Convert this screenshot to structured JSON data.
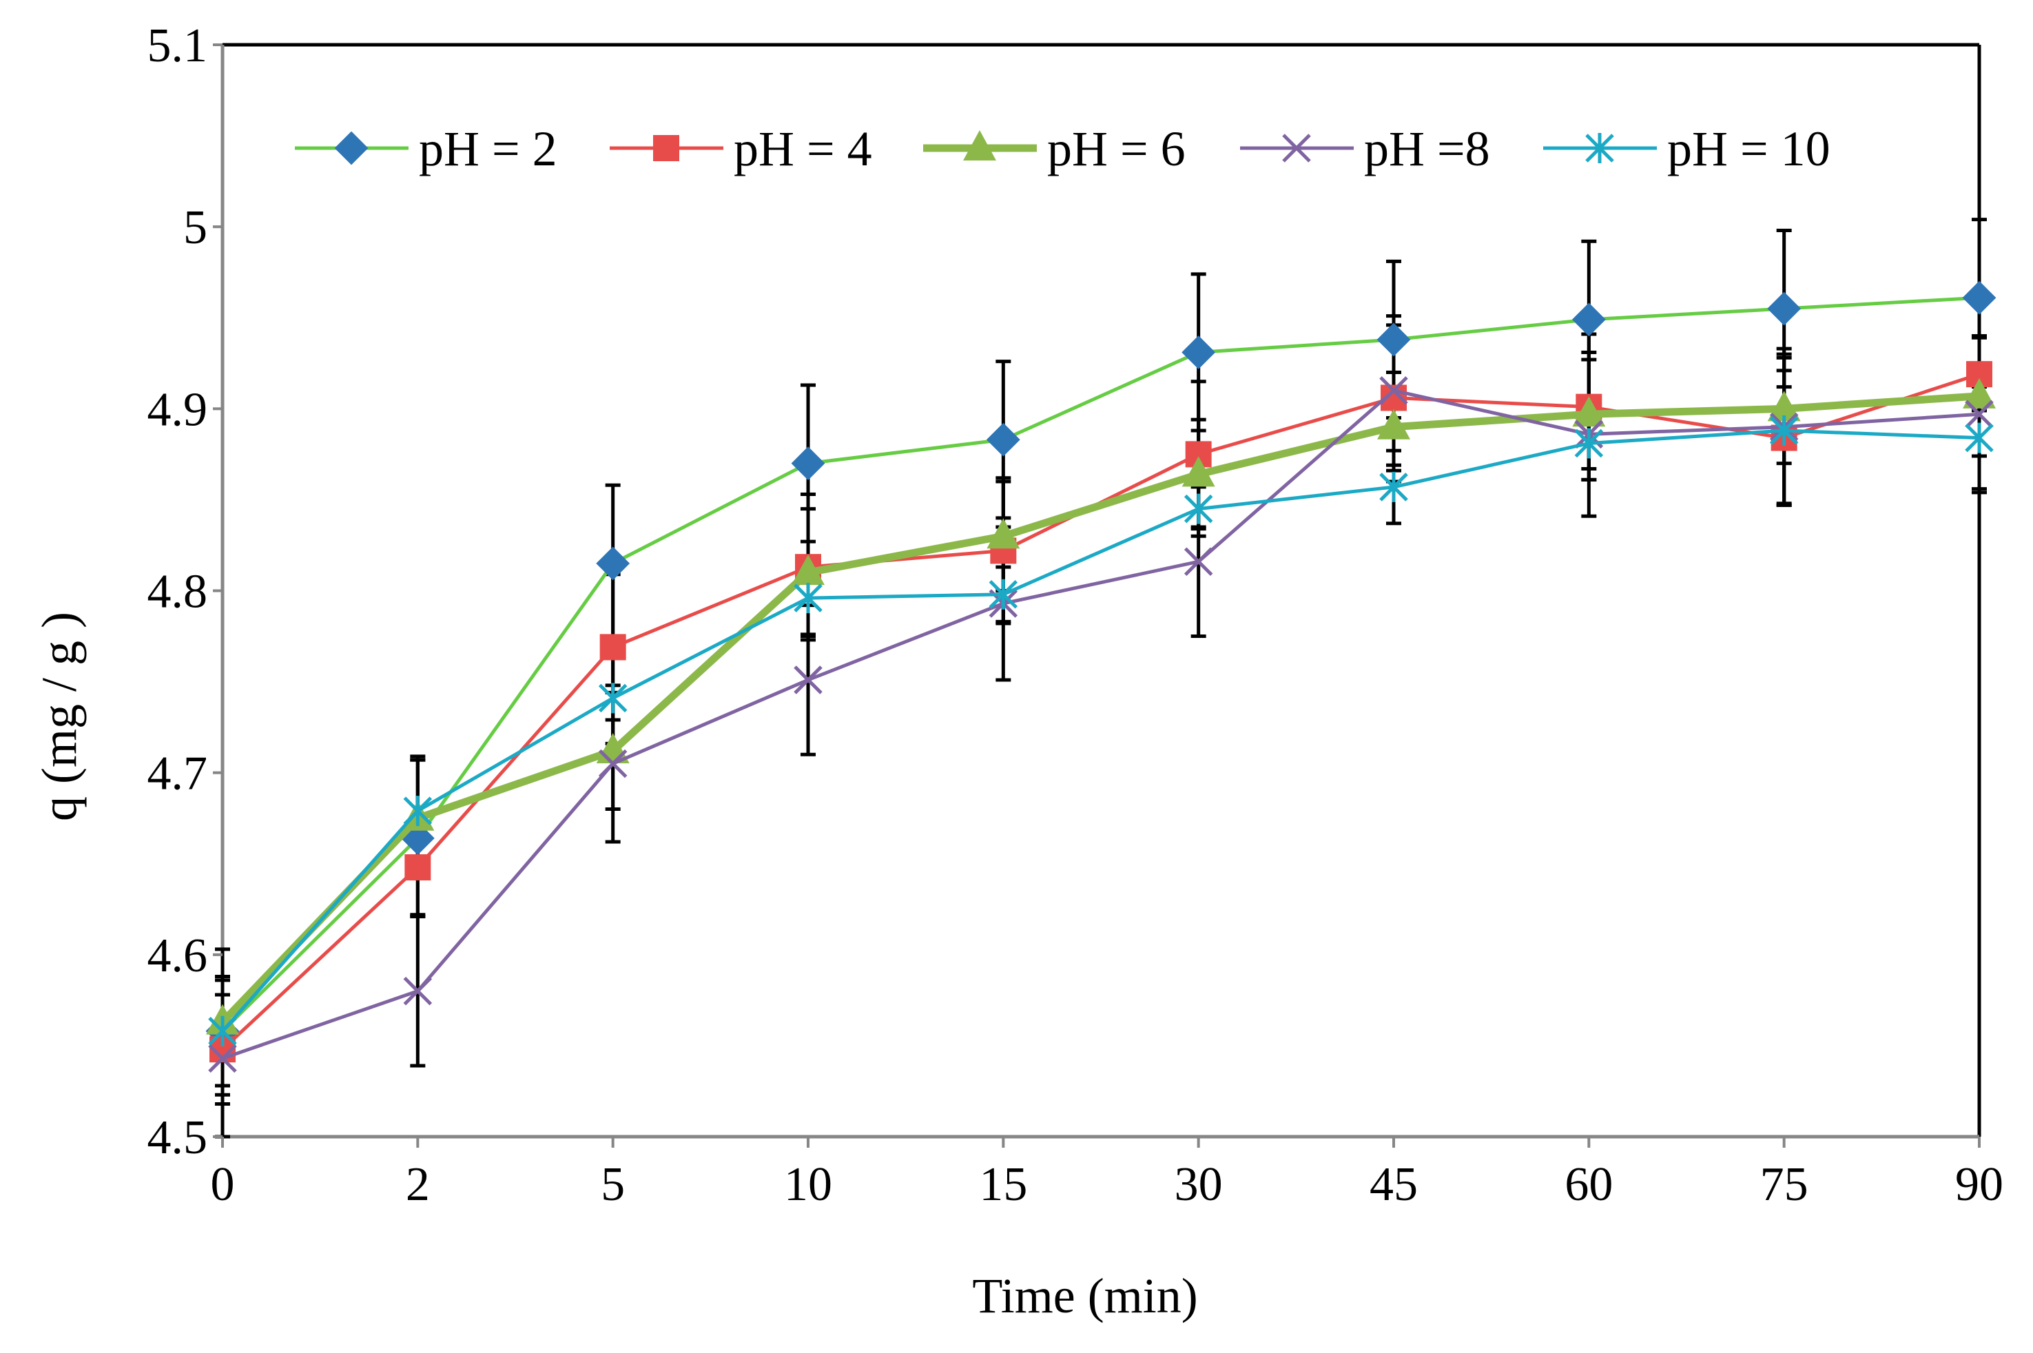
{
  "chart_data": {
    "type": "line",
    "title": "",
    "xlabel": "Time (min)",
    "ylabel": "q (mg / g )",
    "categories": [
      "0",
      "2",
      "5",
      "10",
      "15",
      "30",
      "45",
      "60",
      "75",
      "90"
    ],
    "ylim": [
      4.5,
      5.1
    ],
    "yticks": [
      "4.5",
      "4.6",
      "4.7",
      "4.8",
      "4.9",
      "5",
      "5.1"
    ],
    "legend_position": "top",
    "series": [
      {
        "name": "pH = 2",
        "color": "#66CC44",
        "marker": "diamond",
        "marker_color": "#2E75B6",
        "values": [
          4.558,
          4.664,
          4.815,
          4.87,
          4.883,
          4.931,
          4.938,
          4.949,
          4.955,
          4.961
        ],
        "errors": [
          0.03,
          0.043,
          0.043,
          0.043,
          0.043,
          0.043,
          0.043,
          0.043,
          0.043,
          0.043
        ]
      },
      {
        "name": "pH = 4",
        "color": "#E84C4A",
        "marker": "square",
        "marker_color": "#E84C4A",
        "values": [
          4.548,
          4.648,
          4.769,
          4.813,
          4.822,
          4.875,
          4.906,
          4.901,
          4.884,
          4.919
        ],
        "errors": [
          0.03,
          0.026,
          0.04,
          0.04,
          0.04,
          0.04,
          0.04,
          0.04,
          0.037,
          0.02
        ]
      },
      {
        "name": "pH = 6",
        "color": "#8CB84A",
        "marker": "triangle",
        "marker_color": "#8CB84A",
        "values": [
          4.563,
          4.675,
          4.712,
          4.81,
          4.83,
          4.864,
          4.89,
          4.897,
          4.9,
          4.907
        ],
        "errors": [
          0.04,
          0.032,
          0.032,
          0.035,
          0.03,
          0.03,
          0.03,
          0.03,
          0.03,
          0.033
        ]
      },
      {
        "name": "pH =8",
        "color": "#8064A2",
        "marker": "x",
        "marker_color": "#8064A2",
        "values": [
          4.543,
          4.58,
          4.705,
          4.751,
          4.793,
          4.816,
          4.91,
          4.886,
          4.89,
          4.897
        ],
        "errors": [
          0.043,
          0.041,
          0.043,
          0.041,
          0.042,
          0.041,
          0.041,
          0.045,
          0.043,
          0.043
        ]
      },
      {
        "name": "pH = 10",
        "color": "#1BA9C5",
        "marker": "asterisk",
        "marker_color": "#1BA9C5",
        "values": [
          4.558,
          4.679,
          4.741,
          4.796,
          4.798,
          4.845,
          4.857,
          4.881,
          4.888,
          4.884
        ],
        "errors": [
          0.03,
          0.03,
          0.025,
          0.02,
          0.015,
          0.015,
          0.02,
          0.02,
          0.04,
          0.028
        ]
      }
    ]
  }
}
